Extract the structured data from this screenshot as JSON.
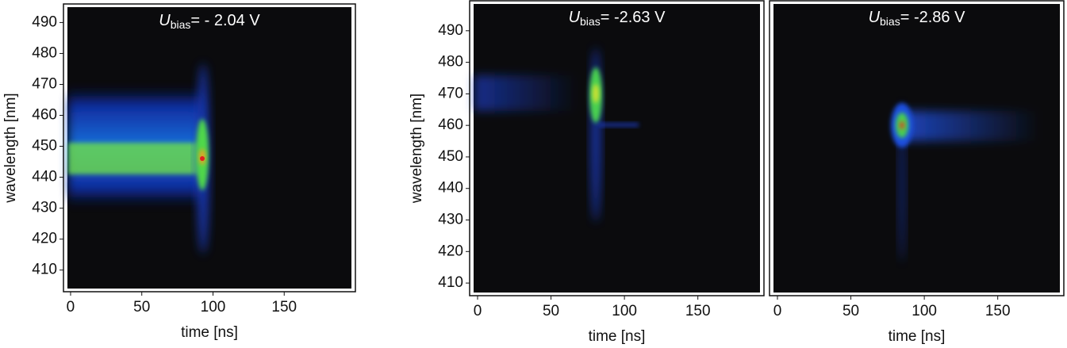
{
  "chart_data": [
    {
      "type": "heatmap",
      "title_symbol": "U",
      "title_subscript": "bias",
      "title_text": "= - 2.04 V",
      "xlabel": "time [ns]",
      "ylabel": "wavelength [nm]",
      "xlim": [
        -5,
        200
      ],
      "ylim": [
        403,
        496
      ],
      "xticks": [
        0,
        50,
        100,
        150
      ],
      "yticks": [
        410,
        420,
        430,
        440,
        450,
        460,
        470,
        480,
        490
      ]
    },
    {
      "type": "heatmap",
      "title_symbol": "U",
      "title_subscript": "bias",
      "title_text": "= -2.63 V",
      "xlabel": "time [ns]",
      "ylabel": "wavelength [nm]",
      "xlim": [
        -5.4,
        195
      ],
      "ylim": [
        406,
        499.5
      ],
      "xticks": [
        0,
        50,
        100,
        150
      ],
      "yticks": [
        410,
        420,
        430,
        440,
        450,
        460,
        470,
        480,
        490
      ]
    },
    {
      "type": "heatmap",
      "title_symbol": "U",
      "title_subscript": "bias",
      "title_text": "= -2.86 V",
      "xlabel": "time [ns]",
      "xlim": [
        -5.4,
        195
      ],
      "ylim": [
        406,
        499.5
      ],
      "xticks": [
        0,
        50,
        100,
        150
      ]
    }
  ]
}
